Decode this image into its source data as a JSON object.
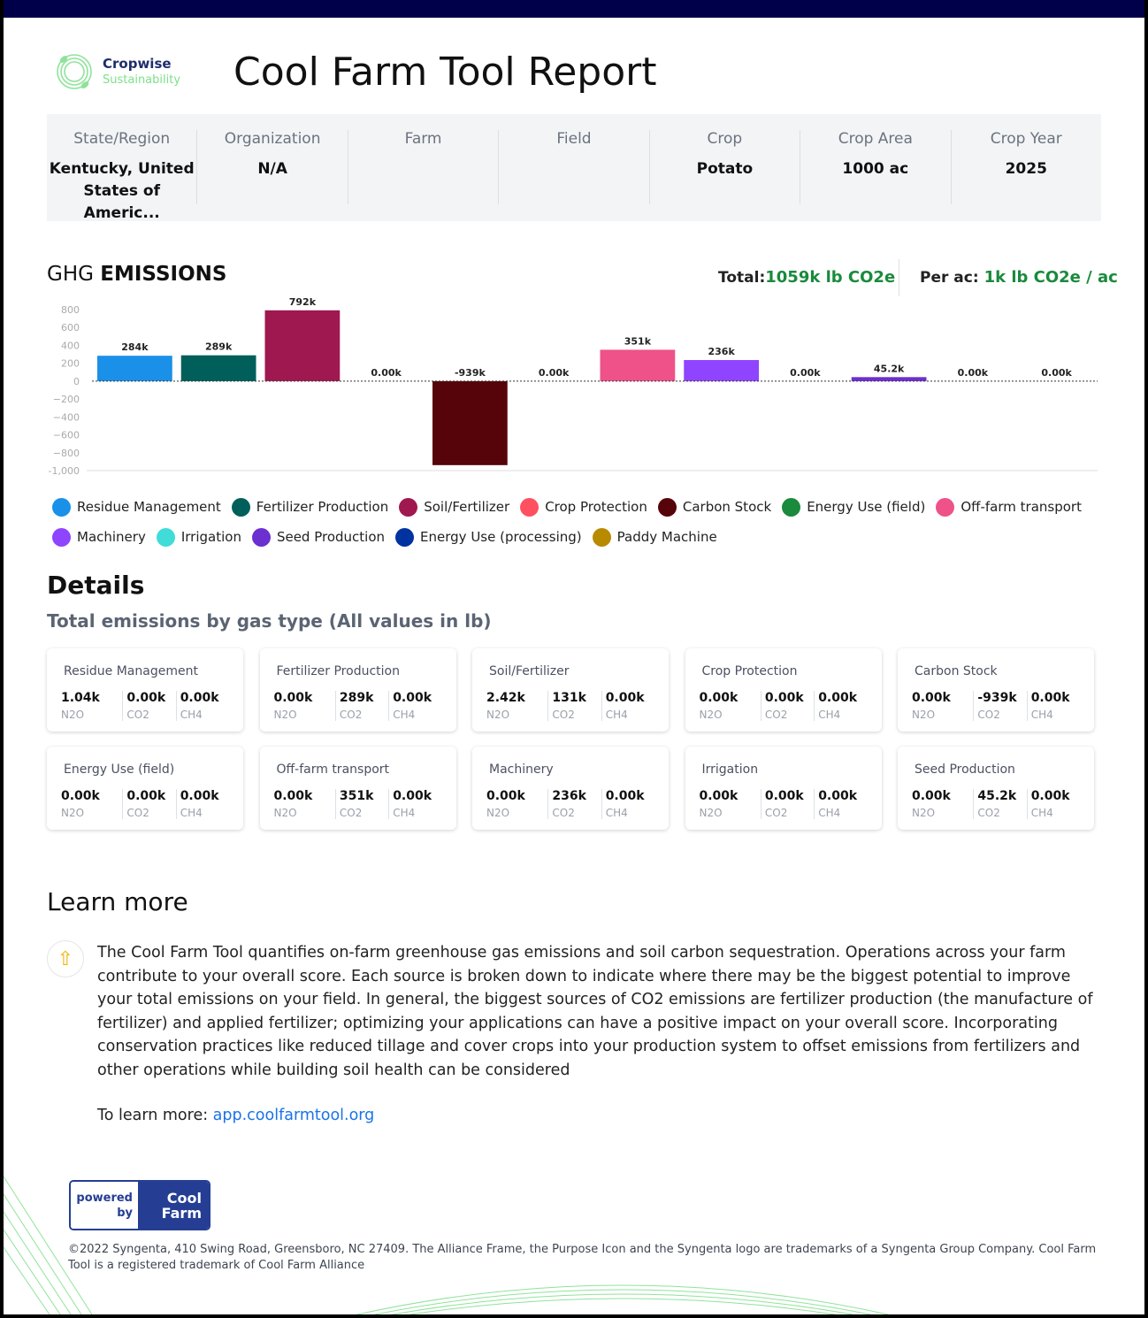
{
  "header": {
    "logo_name": "Cropwise",
    "logo_sub": "Sustainability",
    "title": "Cool Farm Tool Report"
  },
  "info": [
    {
      "label": "State/Region",
      "value": "Kentucky, United States of Americ..."
    },
    {
      "label": "Organization",
      "value": "N/A"
    },
    {
      "label": "Farm",
      "value": ""
    },
    {
      "label": "Field",
      "value": ""
    },
    {
      "label": "Crop",
      "value": "Potato"
    },
    {
      "label": "Crop Area",
      "value": "1000 ac"
    },
    {
      "label": "Crop Year",
      "value": "2025"
    }
  ],
  "ghg": {
    "title_plain": "GHG ",
    "title_bold": "EMISSIONS",
    "total_label": "Total:",
    "total_value": "1059k lb CO2e",
    "perac_label": "Per ac: ",
    "perac_value": "1k lb CO2e / ac"
  },
  "chart_data": {
    "type": "bar",
    "categories": [
      "Residue Management",
      "Fertilizer Production",
      "Soil/Fertilizer",
      "Crop Protection",
      "Carbon Stock",
      "Energy Use (field)",
      "Off-farm transport",
      "Machinery",
      "Irrigation",
      "Seed Production",
      "Energy Use (processing)",
      "Paddy Machine"
    ],
    "values": [
      284,
      289,
      792,
      0,
      -939,
      0,
      351,
      236,
      0,
      45.2,
      0,
      0
    ],
    "labels": [
      "284k",
      "289k",
      "792k",
      "0.00k",
      "-939k",
      "0.00k",
      "351k",
      "236k",
      "0.00k",
      "45.2k",
      "0.00k",
      "0.00k"
    ],
    "colors": [
      "#1a90e8",
      "#005f5a",
      "#a01850",
      "#ff5060",
      "#560409",
      "#1a8a3c",
      "#ee5288",
      "#8f44ff",
      "#40dcd8",
      "#6c2fd0",
      "#0033a0",
      "#b88a00"
    ],
    "yticks": [
      "800",
      "600",
      "400",
      "200",
      "0",
      "−200",
      "−400",
      "−600",
      "−800",
      "-1,000"
    ],
    "ytick_values": [
      800,
      600,
      400,
      200,
      0,
      -200,
      -400,
      -600,
      -800,
      -1000
    ],
    "ylim": [
      -1000,
      800
    ],
    "legend_placement": "bottom"
  },
  "details": {
    "title": "Details",
    "subtitle": "Total emissions by gas type (All values in lb)",
    "gases": [
      "N2O",
      "CO2",
      "CH4"
    ],
    "cards": [
      {
        "title": "Residue Management",
        "values": [
          "1.04k",
          "0.00k",
          "0.00k"
        ]
      },
      {
        "title": "Fertilizer Production",
        "values": [
          "0.00k",
          "289k",
          "0.00k"
        ]
      },
      {
        "title": "Soil/Fertilizer",
        "values": [
          "2.42k",
          "131k",
          "0.00k"
        ]
      },
      {
        "title": "Crop Protection",
        "values": [
          "0.00k",
          "0.00k",
          "0.00k"
        ]
      },
      {
        "title": "Carbon Stock",
        "values": [
          "0.00k",
          "-939k",
          "0.00k"
        ]
      },
      {
        "title": "Energy Use (field)",
        "values": [
          "0.00k",
          "0.00k",
          "0.00k"
        ]
      },
      {
        "title": "Off-farm transport",
        "values": [
          "0.00k",
          "351k",
          "0.00k"
        ]
      },
      {
        "title": "Machinery",
        "values": [
          "0.00k",
          "236k",
          "0.00k"
        ]
      },
      {
        "title": "Irrigation",
        "values": [
          "0.00k",
          "0.00k",
          "0.00k"
        ]
      },
      {
        "title": "Seed Production",
        "values": [
          "0.00k",
          "45.2k",
          "0.00k"
        ]
      }
    ]
  },
  "learn": {
    "title": "Learn more",
    "icon": "lightbulb-arrow-icon",
    "text": "The Cool Farm Tool quantifies on-farm greenhouse gas emissions and soil carbon sequestration. Operations across your farm contribute to your overall score. Each source is broken down to indicate where there may be the biggest potential to improve your total emissions on your field. In general, the biggest sources of CO2 emissions are fertilizer production (the manufacture of fertilizer) and applied fertilizer; optimizing your applications can have a positive impact on your overall score. Incorporating conservation practices like reduced tillage and cover crops into your production system to offset emissions from fertilizers and other operations while building soil health can be considered",
    "more_label": "To learn more: ",
    "link": "app.coolfarmtool.org"
  },
  "footer": {
    "badge_left": "powered by",
    "badge_right": "Cool Farm",
    "copyright": "©2022 Syngenta, 410 Swing Road, Greensboro, NC 27409. The Alliance Frame, the Purpose Icon and the Syngenta logo are trademarks of a Syngenta Group Company. Cool Farm Tool is a registered trademark of Cool Farm Alliance"
  },
  "colors": {
    "navy": "#00004a",
    "accent_green": "#1a8a3c",
    "link": "#1a73e8",
    "badge": "#253e94"
  }
}
